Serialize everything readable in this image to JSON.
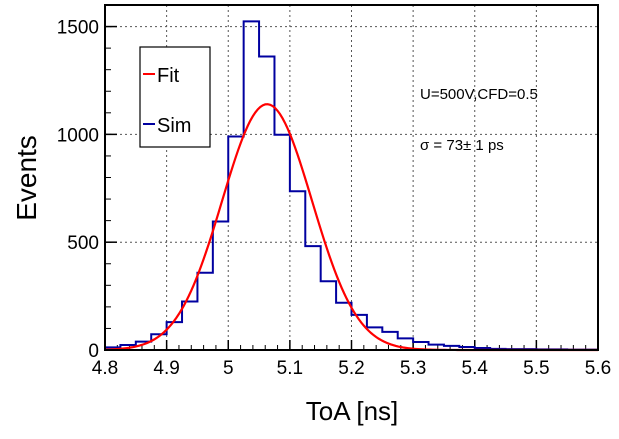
{
  "chart_data": {
    "type": "histogram",
    "title": "",
    "xlabel": "ToA [ns]",
    "ylabel": "Events",
    "xlim": [
      4.8,
      5.6
    ],
    "ylim": [
      0,
      1600
    ],
    "xticks": [
      "4.8",
      "4.9",
      "5",
      "5.1",
      "5.2",
      "5.3",
      "5.4",
      "5.5",
      "5.6"
    ],
    "yticks": [
      "0",
      "500",
      "1000",
      "1500"
    ],
    "grid": true,
    "bin_start": 4.8,
    "bin_width": 0.025,
    "series": [
      {
        "name": "Sim",
        "color": "#0000a0",
        "values": [
          12,
          23,
          39,
          73,
          129,
          225,
          358,
          596,
          990,
          1524,
          1361,
          998,
          736,
          482,
          319,
          219,
          163,
          105,
          84,
          54,
          37,
          25,
          19,
          14,
          9,
          5,
          4,
          4,
          3,
          3,
          2,
          2
        ]
      },
      {
        "name": "Fit",
        "color": "#ff0000",
        "function": "gaussian",
        "amplitude": 1140,
        "mean": 5.063,
        "sigma": 0.073
      }
    ],
    "legend": {
      "placement": "top-left",
      "entries": [
        "Fit",
        "Sim"
      ]
    },
    "annotations": [
      "U=500V,CFD=0.5",
      "σ = 73± 1 ps"
    ]
  }
}
